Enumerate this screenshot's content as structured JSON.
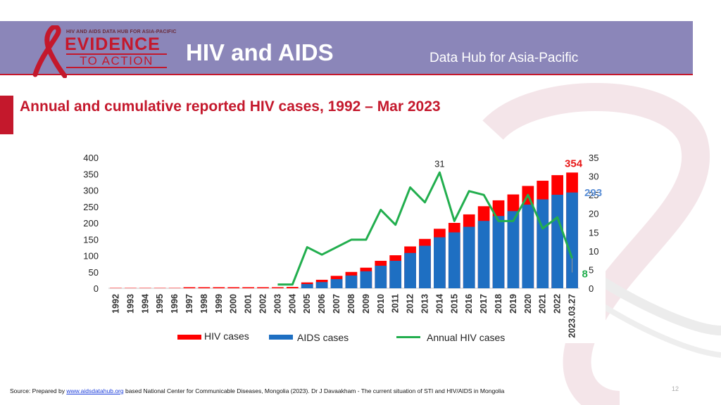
{
  "header": {
    "logo_top": "HIV AND AIDS DATA HUB FOR ASIA-PACIFIC",
    "logo_evidence": "EVIDENCE",
    "logo_to_action": "TO ACTION",
    "title": "HIV and AIDS",
    "subtitle": "Data Hub for Asia-Pacific"
  },
  "slide_title": "Annual and cumulative reported HIV cases, 1992 – Mar 2023",
  "legend": {
    "hiv": "HIV cases",
    "aids": "AIDS cases",
    "annual": "Annual HIV cases"
  },
  "source": {
    "prefix": "Source: Prepared by ",
    "link": "www.aidsdatahub.org",
    "suffix": " based National Center for Communicable Diseases, Mongolia (2023). Dr J Davaakham - The current situation of STI and HIV/AIDS in Mongolia"
  },
  "page_number": "12",
  "colors": {
    "header_bg": "#8b86b9",
    "accent_red": "#c4182c",
    "hiv_bar": "#ff0000",
    "aids_bar": "#1e6fc2",
    "annual_line": "#22ae4e",
    "label_blue": "#5b8fd6"
  },
  "chart_data": {
    "type": "bar",
    "categories": [
      "1992",
      "1993",
      "1994",
      "1995",
      "1996",
      "1997",
      "1998",
      "1999",
      "2000",
      "2001",
      "2002",
      "2003",
      "2004",
      "2005",
      "2006",
      "2007",
      "2008",
      "2009",
      "2010",
      "2011",
      "2012",
      "2013",
      "2014",
      "2015",
      "2016",
      "2017",
      "2018",
      "2019",
      "2020",
      "2021",
      "2022",
      "2023.03.27"
    ],
    "series": [
      {
        "name": "HIV cases",
        "axis": "left",
        "stacked_total": true,
        "values": [
          0,
          0,
          0,
          0,
          0,
          1,
          1,
          1,
          1,
          1,
          1,
          2,
          4,
          18,
          26,
          38,
          50,
          63,
          84,
          101,
          128,
          151,
          182,
          200,
          226,
          251,
          269,
          287,
          313,
          329,
          346,
          354
        ]
      },
      {
        "name": "AIDS cases",
        "axis": "left",
        "values": [
          0,
          0,
          0,
          0,
          0,
          0,
          0,
          0,
          0,
          0,
          0,
          0,
          0,
          13,
          19,
          28,
          39,
          52,
          69,
          84,
          108,
          130,
          156,
          171,
          188,
          206,
          221,
          236,
          256,
          272,
          286,
          293
        ]
      },
      {
        "name": "Annual HIV cases",
        "type": "line",
        "axis": "right",
        "values": [
          null,
          null,
          null,
          null,
          null,
          null,
          null,
          null,
          null,
          null,
          null,
          1,
          1,
          11,
          9,
          11,
          13,
          13,
          21,
          17,
          27,
          23,
          31,
          18,
          26,
          25,
          18,
          18,
          25,
          16,
          19,
          8
        ]
      }
    ],
    "y_left": {
      "ticks": [
        0,
        50,
        100,
        150,
        200,
        250,
        300,
        350,
        400
      ],
      "lim": [
        0,
        400
      ]
    },
    "y_right": {
      "ticks": [
        0,
        5,
        10,
        15,
        20,
        25,
        30,
        35
      ],
      "lim": [
        0,
        35
      ]
    },
    "annotations": {
      "peak": "31",
      "hiv_total": "354",
      "aids_total": "293",
      "last_annual": "8"
    }
  }
}
